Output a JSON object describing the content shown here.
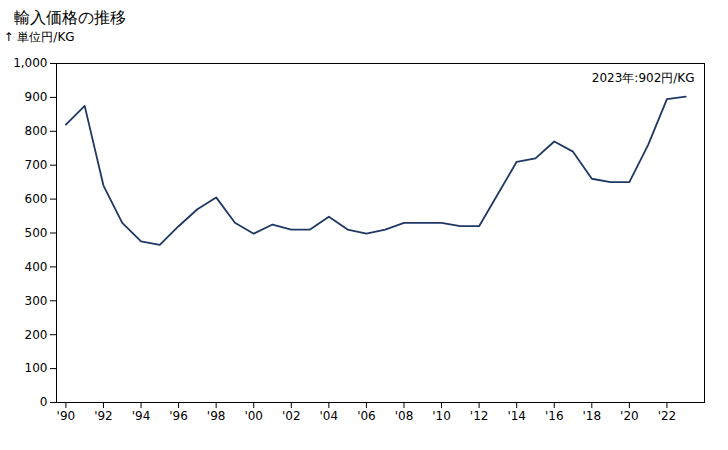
{
  "chart_data": {
    "type": "line",
    "title": "輸入価格の推移",
    "y_label": "単位円/KG",
    "annotation": "2023年:902円/KG",
    "x": [
      1990,
      1991,
      1992,
      1993,
      1994,
      1995,
      1996,
      1997,
      1998,
      1999,
      2000,
      2001,
      2002,
      2003,
      2004,
      2005,
      2006,
      2007,
      2008,
      2009,
      2010,
      2011,
      2012,
      2013,
      2014,
      2015,
      2016,
      2017,
      2018,
      2019,
      2020,
      2021,
      2022,
      2023
    ],
    "values": [
      820,
      875,
      640,
      530,
      475,
      465,
      520,
      570,
      605,
      530,
      498,
      525,
      510,
      510,
      548,
      510,
      498,
      510,
      530,
      530,
      530,
      520,
      520,
      615,
      710,
      720,
      770,
      740,
      660,
      650,
      650,
      760,
      895,
      902
    ],
    "color": "#1F3864",
    "xlim": [
      1989.5,
      2024
    ],
    "xticks": [
      {
        "value": 1990,
        "label": "'90"
      },
      {
        "value": 1992,
        "label": "'92"
      },
      {
        "value": 1994,
        "label": "'94"
      },
      {
        "value": 1996,
        "label": "'96"
      },
      {
        "value": 1998,
        "label": "'98"
      },
      {
        "value": 2000,
        "label": "'00"
      },
      {
        "value": 2002,
        "label": "'02"
      },
      {
        "value": 2004,
        "label": "'04"
      },
      {
        "value": 2006,
        "label": "'06"
      },
      {
        "value": 2008,
        "label": "'08"
      },
      {
        "value": 2010,
        "label": "'10"
      },
      {
        "value": 2012,
        "label": "'12"
      },
      {
        "value": 2014,
        "label": "'14"
      },
      {
        "value": 2016,
        "label": "'16"
      },
      {
        "value": 2018,
        "label": "'18"
      },
      {
        "value": 2020,
        "label": "'20"
      },
      {
        "value": 2022,
        "label": "'22"
      }
    ],
    "ylim": [
      0,
      1000
    ],
    "yticks": [
      0,
      100,
      200,
      300,
      400,
      500,
      600,
      700,
      800,
      900,
      {
        "value": 1000,
        "label": "1,000"
      }
    ],
    "grid": false
  }
}
